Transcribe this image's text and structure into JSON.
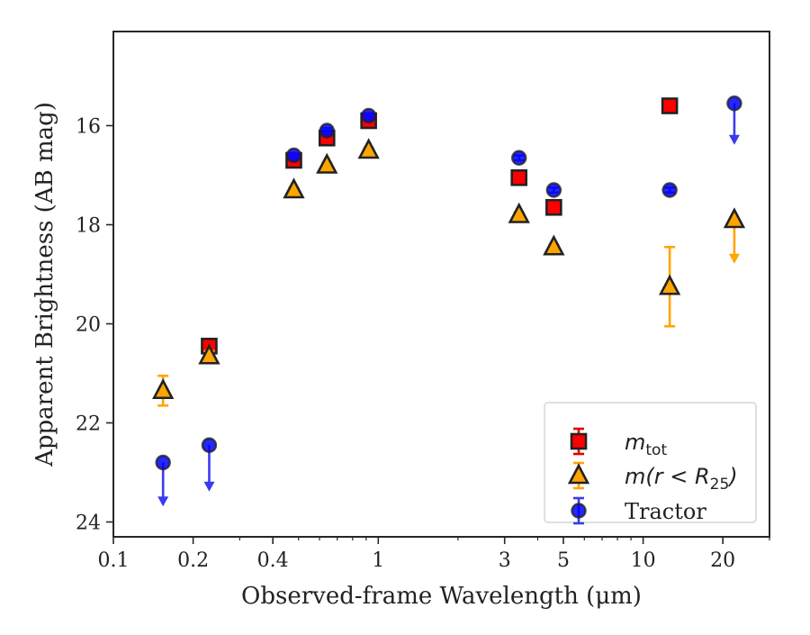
{
  "chart_data": {
    "type": "scatter",
    "title": "",
    "xlabel": "Observed-frame Wavelength (μm)",
    "ylabel": "Apparent Brightness (AB mag)",
    "xscale": "log",
    "xlim": [
      0.1,
      30
    ],
    "ylim": [
      24.3,
      14.1
    ],
    "y_inverted": true,
    "x_ticks": [
      0.1,
      0.2,
      0.4,
      1,
      3,
      5,
      10,
      20
    ],
    "x_tick_labels": [
      "0.1",
      "0.2",
      "0.4",
      "1",
      "3",
      "5",
      "10",
      "20"
    ],
    "y_ticks": [
      16,
      18,
      20,
      22,
      24
    ],
    "y_tick_labels": [
      "16",
      "18",
      "20",
      "22",
      "24"
    ],
    "grid": false,
    "legend_position": "bottom-right",
    "legend": [
      {
        "label_main": "m",
        "label_sub": "tot",
        "label_suffix": ""
      },
      {
        "label_main": "m(r < R",
        "label_sub": "25",
        "label_suffix": ")"
      },
      {
        "label_main": "Tractor",
        "label_sub": "",
        "label_suffix": ""
      }
    ],
    "series": [
      {
        "marker": "square",
        "color": "#ff0000",
        "edge_color": "#222222",
        "points": [
          {
            "x": 0.23,
            "y": 20.45,
            "err": 0.1,
            "upper_limit": false
          },
          {
            "x": 0.48,
            "y": 16.7,
            "err": 0.05,
            "upper_limit": false
          },
          {
            "x": 0.64,
            "y": 16.25,
            "err": 0.05,
            "upper_limit": false
          },
          {
            "x": 0.92,
            "y": 15.9,
            "err": 0.05,
            "upper_limit": false
          },
          {
            "x": 3.4,
            "y": 17.05,
            "err": 0.05,
            "upper_limit": false
          },
          {
            "x": 4.6,
            "y": 17.65,
            "err": 0.05,
            "upper_limit": false
          },
          {
            "x": 12.6,
            "y": 15.6,
            "err": 0.05,
            "upper_limit": false
          }
        ]
      },
      {
        "marker": "triangle",
        "color": "#ffa500",
        "edge_color": "#222222",
        "points": [
          {
            "x": 0.154,
            "y": 21.35,
            "err": 0.3,
            "upper_limit": false
          },
          {
            "x": 0.23,
            "y": 20.65,
            "err": 0.1,
            "upper_limit": false
          },
          {
            "x": 0.48,
            "y": 17.3,
            "err": 0.05,
            "upper_limit": false
          },
          {
            "x": 0.64,
            "y": 16.8,
            "err": 0.05,
            "upper_limit": false
          },
          {
            "x": 0.92,
            "y": 16.5,
            "err": 0.05,
            "upper_limit": false
          },
          {
            "x": 3.4,
            "y": 17.8,
            "err": 0.05,
            "upper_limit": false
          },
          {
            "x": 4.6,
            "y": 18.45,
            "err": 0.05,
            "upper_limit": false
          },
          {
            "x": 12.6,
            "y": 19.25,
            "err": 0.8,
            "upper_limit": false
          },
          {
            "x": 22.1,
            "y": 17.9,
            "err": 0,
            "upper_limit": true,
            "arrow_to": 18.75
          }
        ]
      },
      {
        "marker": "circle",
        "color": "#0000ff",
        "edge_color": "#222222",
        "points": [
          {
            "x": 0.154,
            "y": 22.8,
            "err": 0,
            "upper_limit": true,
            "arrow_to": 23.65
          },
          {
            "x": 0.23,
            "y": 22.45,
            "err": 0,
            "upper_limit": true,
            "arrow_to": 23.35
          },
          {
            "x": 0.48,
            "y": 16.6,
            "err": 0.05,
            "upper_limit": false
          },
          {
            "x": 0.64,
            "y": 16.1,
            "err": 0.05,
            "upper_limit": false
          },
          {
            "x": 0.92,
            "y": 15.8,
            "err": 0.05,
            "upper_limit": false
          },
          {
            "x": 3.4,
            "y": 16.65,
            "err": 0.05,
            "upper_limit": false
          },
          {
            "x": 4.6,
            "y": 17.3,
            "err": 0.05,
            "upper_limit": false
          },
          {
            "x": 12.6,
            "y": 17.3,
            "err": 0.05,
            "upper_limit": false
          },
          {
            "x": 22.1,
            "y": 15.55,
            "err": 0,
            "upper_limit": true,
            "arrow_to": 16.35
          }
        ]
      }
    ]
  }
}
